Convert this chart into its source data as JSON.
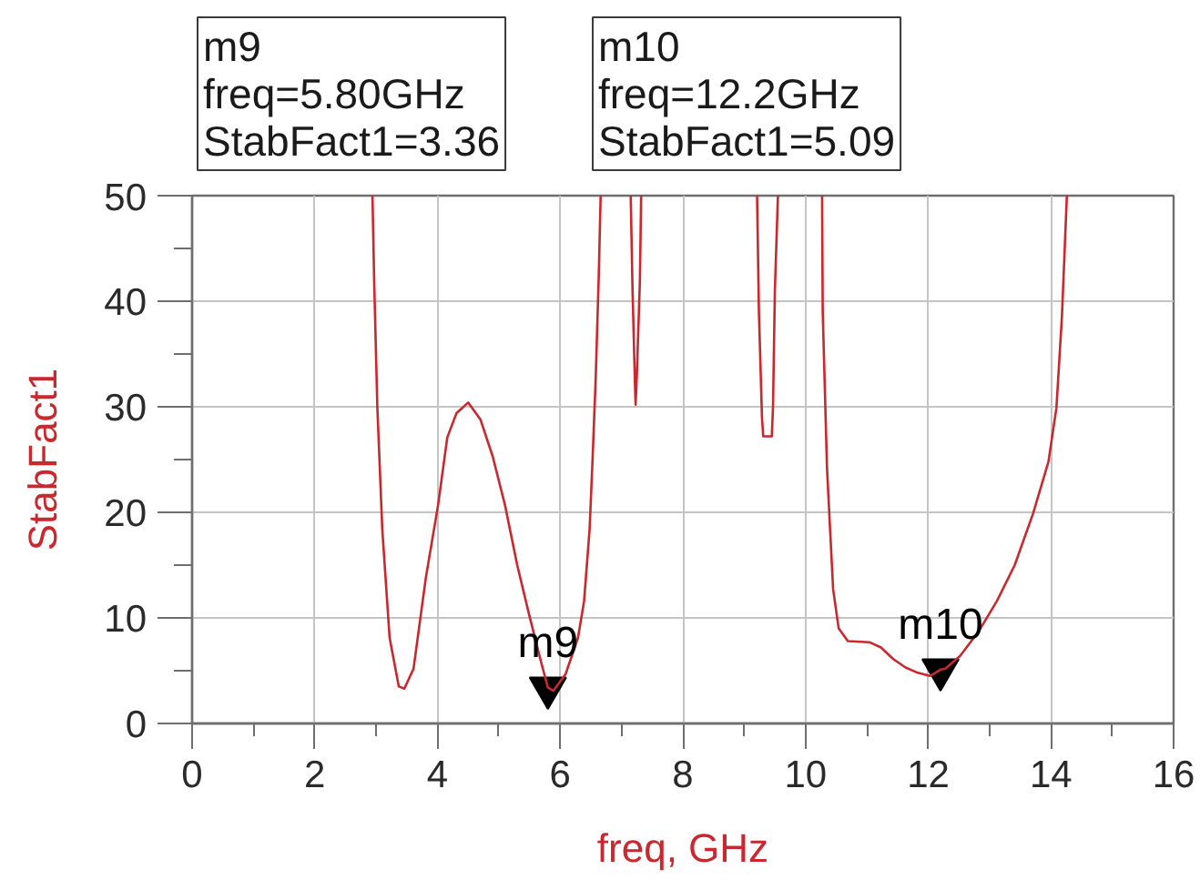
{
  "chart_data": {
    "type": "line",
    "xlabel": "freq, GHz",
    "ylabel": "StabFact1",
    "xlim": [
      0,
      16
    ],
    "ylim": [
      0,
      50
    ],
    "xticks": [
      0,
      2,
      4,
      6,
      8,
      10,
      12,
      14,
      16
    ],
    "yticks": [
      0,
      10,
      20,
      30,
      40,
      50
    ],
    "grid": true,
    "x": [
      2.94,
      2.97,
      3.02,
      3.1,
      3.22,
      3.37,
      3.46,
      3.61,
      3.81,
      4.01,
      4.16,
      4.31,
      4.5,
      4.7,
      4.9,
      5.1,
      5.3,
      5.49,
      5.69,
      5.8,
      5.89,
      6.09,
      6.29,
      6.39,
      6.48,
      6.53,
      6.58,
      6.63,
      6.66,
      6.9,
      7.15,
      7.18,
      7.22,
      7.23,
      7.25,
      7.3,
      7.32,
      8.3,
      9.21,
      9.24,
      9.29,
      9.31,
      9.45,
      9.47,
      9.5,
      9.55,
      9.9,
      10.27,
      10.28,
      10.35,
      10.4,
      10.45,
      10.54,
      10.69,
      11.04,
      11.23,
      11.43,
      11.63,
      11.83,
      12.03,
      12.2,
      12.28,
      12.52,
      12.82,
      13.12,
      13.41,
      13.71,
      13.96,
      14.09,
      14.18,
      14.26
    ],
    "series": [
      {
        "type": "scatter",
        "color": "#000000",
        "marker": "triangle",
        "x": [
          5.8,
          12.2
        ],
        "values": [
          3.36,
          5.09
        ]
      },
      {
        "color": "#c8282e",
        "values": [
          50,
          41.4,
          29.9,
          18.4,
          8.1,
          3.5,
          3.3,
          5.2,
          13.8,
          20.7,
          27.1,
          29.4,
          30.4,
          28.8,
          25.3,
          20.7,
          15.0,
          10.4,
          5.8,
          3.4,
          3.1,
          4.7,
          8.1,
          11.6,
          18.4,
          25.3,
          32.8,
          42.6,
          50,
          null,
          50,
          41,
          32,
          30.2,
          33,
          42,
          50,
          null,
          50,
          39,
          29,
          27.2,
          27.2,
          30,
          41,
          50,
          null,
          50,
          39.1,
          24.2,
          18.4,
          12.7,
          9.0,
          7.8,
          7.7,
          7.2,
          6.1,
          5.3,
          4.8,
          4.5,
          5.1,
          5.2,
          6.4,
          8.7,
          11.6,
          15.0,
          19.9,
          24.8,
          29.9,
          38.6,
          50
        ]
      }
    ],
    "annotations": [
      {
        "text": "m9",
        "x": 5.8,
        "y": 3.36
      },
      {
        "text": "m10",
        "x": 12.2,
        "y": 5.09
      },
      "m9\nfreq=5.80GHz\nStabFact1=3.36",
      "m10\nfreq=12.2GHz\nStabFact1=5.09"
    ]
  }
}
